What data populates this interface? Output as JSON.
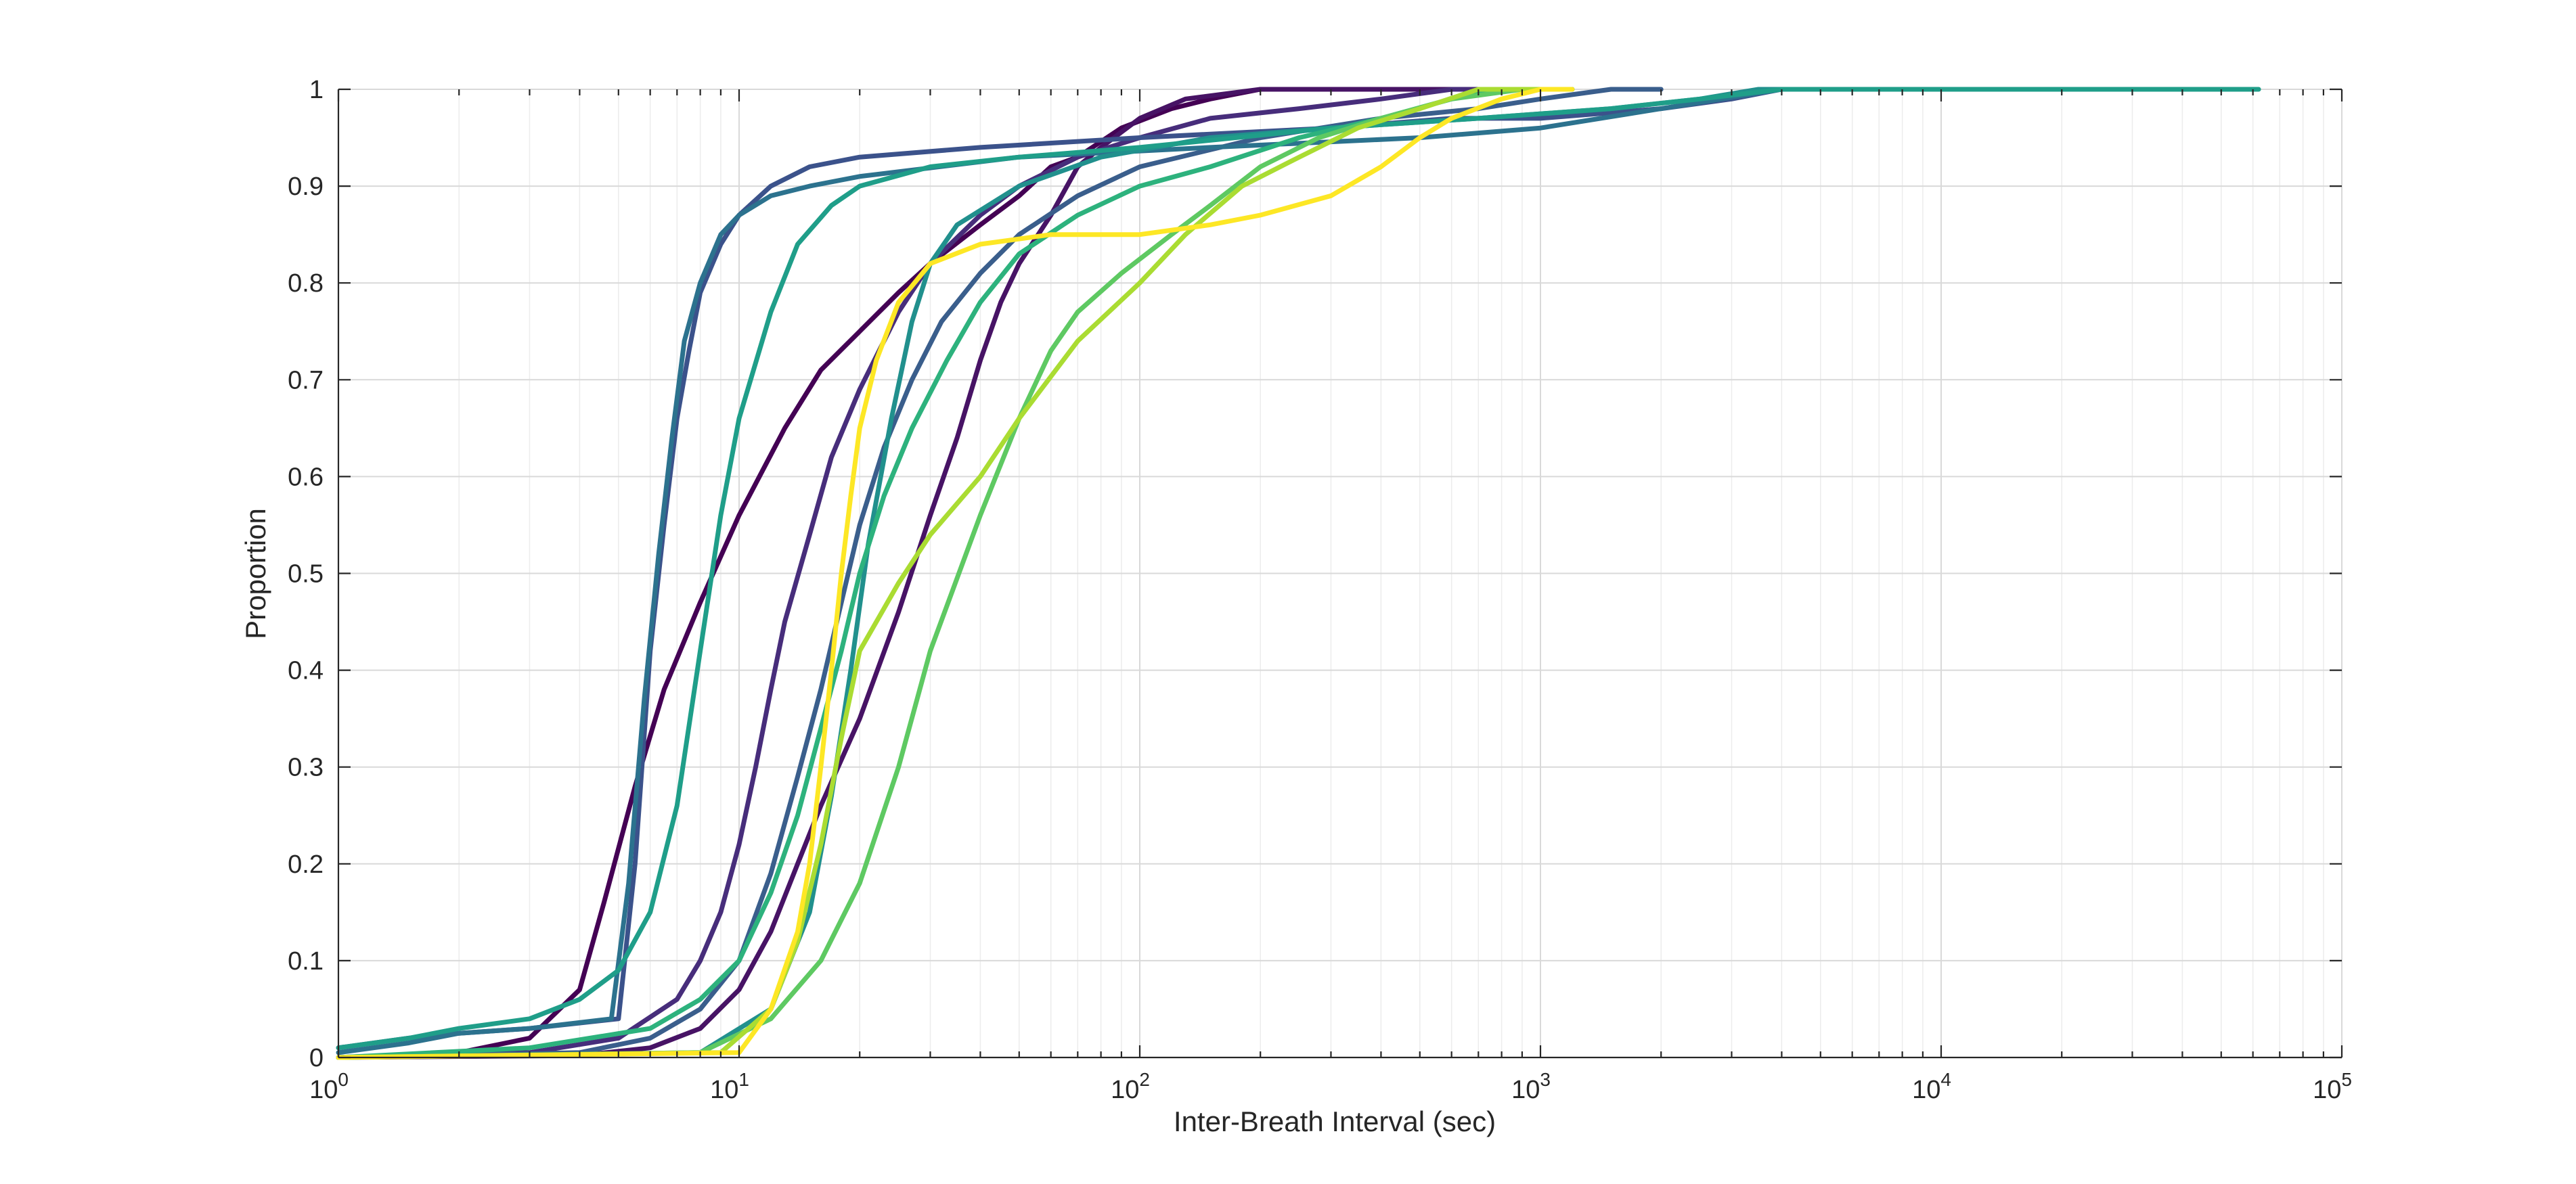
{
  "chart_data": {
    "type": "line",
    "title": "",
    "xlabel": "Inter-Breath Interval (sec)",
    "ylabel": "Proportion",
    "xscale": "log",
    "xlim": [
      1,
      100000
    ],
    "ylim": [
      0,
      1
    ],
    "grid": true,
    "minor_grid": true,
    "legend": "none",
    "x_ticks": [
      {
        "value": 1,
        "base": "10",
        "exp": "0"
      },
      {
        "value": 10,
        "base": "10",
        "exp": "1"
      },
      {
        "value": 100,
        "base": "10",
        "exp": "2"
      },
      {
        "value": 1000,
        "base": "10",
        "exp": "3"
      },
      {
        "value": 10000,
        "base": "10",
        "exp": "4"
      },
      {
        "value": 100000,
        "base": "10",
        "exp": "5"
      }
    ],
    "y_ticks": [
      {
        "value": 0,
        "label": "0"
      },
      {
        "value": 0.1,
        "label": "0.1"
      },
      {
        "value": 0.2,
        "label": "0.2"
      },
      {
        "value": 0.3,
        "label": "0.3"
      },
      {
        "value": 0.4,
        "label": "0.4"
      },
      {
        "value": 0.5,
        "label": "0.5"
      },
      {
        "value": 0.6,
        "label": "0.6"
      },
      {
        "value": 0.7,
        "label": "0.7"
      },
      {
        "value": 0.8,
        "label": "0.8"
      },
      {
        "value": 0.9,
        "label": "0.9"
      },
      {
        "value": 1,
        "label": "1"
      }
    ],
    "series": [
      {
        "color": "#440154",
        "points": [
          [
            1,
            0
          ],
          [
            2,
            0.005
          ],
          [
            3,
            0.02
          ],
          [
            4,
            0.07
          ],
          [
            4.6,
            0.16
          ],
          [
            5.5,
            0.28
          ],
          [
            6.5,
            0.38
          ],
          [
            8,
            0.47
          ],
          [
            10,
            0.56
          ],
          [
            13,
            0.65
          ],
          [
            16,
            0.71
          ],
          [
            20,
            0.75
          ],
          [
            25,
            0.79
          ],
          [
            30,
            0.82
          ],
          [
            40,
            0.86
          ],
          [
            50,
            0.89
          ],
          [
            60,
            0.92
          ],
          [
            70,
            0.93
          ],
          [
            90,
            0.96
          ],
          [
            120,
            0.98
          ],
          [
            150,
            0.99
          ],
          [
            200,
            1
          ],
          [
            1200,
            1
          ]
        ]
      },
      {
        "color": "#471365",
        "points": [
          [
            1,
            0
          ],
          [
            4,
            0.002
          ],
          [
            6,
            0.01
          ],
          [
            8,
            0.03
          ],
          [
            10,
            0.07
          ],
          [
            12,
            0.13
          ],
          [
            14,
            0.2
          ],
          [
            16,
            0.26
          ],
          [
            20,
            0.35
          ],
          [
            25,
            0.46
          ],
          [
            30,
            0.56
          ],
          [
            35,
            0.64
          ],
          [
            40,
            0.72
          ],
          [
            45,
            0.78
          ],
          [
            50,
            0.82
          ],
          [
            60,
            0.87
          ],
          [
            70,
            0.92
          ],
          [
            80,
            0.94
          ],
          [
            100,
            0.97
          ],
          [
            130,
            0.99
          ],
          [
            200,
            1
          ],
          [
            800,
            1
          ]
        ]
      },
      {
        "color": "#472d7b",
        "points": [
          [
            1,
            0
          ],
          [
            3,
            0.005
          ],
          [
            5,
            0.02
          ],
          [
            7,
            0.06
          ],
          [
            8,
            0.1
          ],
          [
            9,
            0.15
          ],
          [
            10,
            0.22
          ],
          [
            11,
            0.3
          ],
          [
            12,
            0.38
          ],
          [
            13,
            0.45
          ],
          [
            15,
            0.54
          ],
          [
            17,
            0.62
          ],
          [
            20,
            0.69
          ],
          [
            25,
            0.77
          ],
          [
            30,
            0.82
          ],
          [
            40,
            0.87
          ],
          [
            50,
            0.9
          ],
          [
            70,
            0.93
          ],
          [
            100,
            0.95
          ],
          [
            150,
            0.97
          ],
          [
            250,
            0.98
          ],
          [
            400,
            0.99
          ],
          [
            600,
            1
          ],
          [
            1000,
            1
          ]
        ]
      },
      {
        "color": "#3b528b",
        "points": [
          [
            1,
            0.01
          ],
          [
            1.5,
            0.02
          ],
          [
            2,
            0.025
          ],
          [
            3,
            0.03
          ],
          [
            5,
            0.04
          ],
          [
            5.5,
            0.2
          ],
          [
            6,
            0.42
          ],
          [
            6.5,
            0.55
          ],
          [
            7,
            0.66
          ],
          [
            7.5,
            0.73
          ],
          [
            8,
            0.79
          ],
          [
            9,
            0.84
          ],
          [
            10,
            0.87
          ],
          [
            12,
            0.9
          ],
          [
            15,
            0.92
          ],
          [
            20,
            0.93
          ],
          [
            40,
            0.94
          ],
          [
            100,
            0.95
          ],
          [
            300,
            0.96
          ],
          [
            600,
            0.97
          ],
          [
            1000,
            0.97
          ],
          [
            2000,
            0.98
          ],
          [
            3000,
            0.99
          ],
          [
            4000,
            1
          ],
          [
            6000,
            1
          ]
        ]
      },
      {
        "color": "#3a5e8c",
        "points": [
          [
            1,
            0
          ],
          [
            4,
            0.005
          ],
          [
            6,
            0.02
          ],
          [
            8,
            0.05
          ],
          [
            10,
            0.1
          ],
          [
            12,
            0.19
          ],
          [
            14,
            0.29
          ],
          [
            16,
            0.38
          ],
          [
            18,
            0.47
          ],
          [
            20,
            0.55
          ],
          [
            23,
            0.63
          ],
          [
            27,
            0.7
          ],
          [
            32,
            0.76
          ],
          [
            40,
            0.81
          ],
          [
            50,
            0.85
          ],
          [
            70,
            0.89
          ],
          [
            100,
            0.92
          ],
          [
            200,
            0.95
          ],
          [
            400,
            0.97
          ],
          [
            700,
            0.98
          ],
          [
            1000,
            0.99
          ],
          [
            1500,
            1
          ],
          [
            2000,
            1
          ]
        ]
      },
      {
        "color": "#2c728e",
        "points": [
          [
            1,
            0.005
          ],
          [
            1.5,
            0.015
          ],
          [
            2,
            0.025
          ],
          [
            3,
            0.03
          ],
          [
            4.8,
            0.04
          ],
          [
            5.3,
            0.18
          ],
          [
            5.8,
            0.37
          ],
          [
            6.3,
            0.52
          ],
          [
            6.8,
            0.64
          ],
          [
            7.3,
            0.74
          ],
          [
            8,
            0.8
          ],
          [
            9,
            0.85
          ],
          [
            10,
            0.87
          ],
          [
            12,
            0.89
          ],
          [
            15,
            0.9
          ],
          [
            20,
            0.91
          ],
          [
            50,
            0.93
          ],
          [
            150,
            0.94
          ],
          [
            500,
            0.95
          ],
          [
            1000,
            0.96
          ],
          [
            2000,
            0.98
          ],
          [
            4000,
            1
          ],
          [
            6000,
            1
          ]
        ]
      },
      {
        "color": "#21908d",
        "points": [
          [
            1,
            0
          ],
          [
            8,
            0.005
          ],
          [
            12,
            0.05
          ],
          [
            15,
            0.15
          ],
          [
            17,
            0.27
          ],
          [
            19,
            0.4
          ],
          [
            21,
            0.53
          ],
          [
            24,
            0.66
          ],
          [
            27,
            0.76
          ],
          [
            30,
            0.82
          ],
          [
            35,
            0.86
          ],
          [
            50,
            0.9
          ],
          [
            80,
            0.93
          ],
          [
            150,
            0.95
          ],
          [
            300,
            0.96
          ],
          [
            700,
            0.97
          ],
          [
            1500,
            0.98
          ],
          [
            2500,
            0.99
          ],
          [
            3500,
            1
          ],
          [
            6500,
            1
          ]
        ]
      },
      {
        "color": "#1f9e89",
        "points": [
          [
            1,
            0.01
          ],
          [
            1.5,
            0.02
          ],
          [
            2,
            0.03
          ],
          [
            3,
            0.04
          ],
          [
            4,
            0.06
          ],
          [
            5,
            0.09
          ],
          [
            6,
            0.15
          ],
          [
            7,
            0.26
          ],
          [
            8,
            0.42
          ],
          [
            9,
            0.56
          ],
          [
            10,
            0.66
          ],
          [
            12,
            0.77
          ],
          [
            14,
            0.84
          ],
          [
            17,
            0.88
          ],
          [
            20,
            0.9
          ],
          [
            30,
            0.92
          ],
          [
            50,
            0.93
          ],
          [
            100,
            0.94
          ],
          [
            300,
            0.96
          ],
          [
            700,
            0.97
          ],
          [
            1500,
            0.98
          ],
          [
            2500,
            0.99
          ],
          [
            4000,
            1
          ],
          [
            62000,
            1
          ]
        ]
      },
      {
        "color": "#2db27d",
        "points": [
          [
            1,
            0
          ],
          [
            3,
            0.01
          ],
          [
            6,
            0.03
          ],
          [
            8,
            0.06
          ],
          [
            10,
            0.1
          ],
          [
            12,
            0.17
          ],
          [
            14,
            0.25
          ],
          [
            16,
            0.34
          ],
          [
            18,
            0.42
          ],
          [
            20,
            0.5
          ],
          [
            23,
            0.58
          ],
          [
            27,
            0.65
          ],
          [
            33,
            0.72
          ],
          [
            40,
            0.78
          ],
          [
            50,
            0.83
          ],
          [
            70,
            0.87
          ],
          [
            100,
            0.9
          ],
          [
            150,
            0.92
          ],
          [
            250,
            0.95
          ],
          [
            400,
            0.97
          ],
          [
            600,
            0.99
          ],
          [
            800,
            1
          ],
          [
            1200,
            1
          ]
        ]
      },
      {
        "color": "#5ec962",
        "points": [
          [
            1,
            0
          ],
          [
            8,
            0.005
          ],
          [
            12,
            0.04
          ],
          [
            16,
            0.1
          ],
          [
            20,
            0.18
          ],
          [
            25,
            0.3
          ],
          [
            30,
            0.42
          ],
          [
            40,
            0.56
          ],
          [
            50,
            0.66
          ],
          [
            60,
            0.73
          ],
          [
            70,
            0.77
          ],
          [
            90,
            0.81
          ],
          [
            120,
            0.85
          ],
          [
            150,
            0.88
          ],
          [
            200,
            0.92
          ],
          [
            280,
            0.95
          ],
          [
            400,
            0.97
          ],
          [
            600,
            0.99
          ],
          [
            900,
            1
          ],
          [
            1200,
            1
          ]
        ]
      },
      {
        "color": "#aadc32",
        "points": [
          [
            1,
            0
          ],
          [
            9,
            0.005
          ],
          [
            12,
            0.05
          ],
          [
            14,
            0.12
          ],
          [
            16,
            0.22
          ],
          [
            18,
            0.33
          ],
          [
            20,
            0.42
          ],
          [
            25,
            0.49
          ],
          [
            30,
            0.54
          ],
          [
            40,
            0.6
          ],
          [
            50,
            0.66
          ],
          [
            70,
            0.74
          ],
          [
            100,
            0.8
          ],
          [
            130,
            0.85
          ],
          [
            180,
            0.9
          ],
          [
            250,
            0.93
          ],
          [
            350,
            0.96
          ],
          [
            500,
            0.98
          ],
          [
            700,
            1
          ],
          [
            1000,
            1
          ]
        ]
      },
      {
        "color": "#fde725",
        "points": [
          [
            1,
            0
          ],
          [
            10,
            0.005
          ],
          [
            12,
            0.05
          ],
          [
            14,
            0.13
          ],
          [
            15,
            0.2
          ],
          [
            16,
            0.3
          ],
          [
            17,
            0.4
          ],
          [
            18,
            0.5
          ],
          [
            19,
            0.58
          ],
          [
            20,
            0.65
          ],
          [
            22,
            0.72
          ],
          [
            25,
            0.78
          ],
          [
            30,
            0.82
          ],
          [
            40,
            0.84
          ],
          [
            60,
            0.85
          ],
          [
            100,
            0.85
          ],
          [
            150,
            0.86
          ],
          [
            200,
            0.87
          ],
          [
            300,
            0.89
          ],
          [
            400,
            0.92
          ],
          [
            500,
            0.95
          ],
          [
            600,
            0.97
          ],
          [
            800,
            0.99
          ],
          [
            1000,
            1
          ],
          [
            1200,
            1
          ]
        ]
      }
    ]
  }
}
